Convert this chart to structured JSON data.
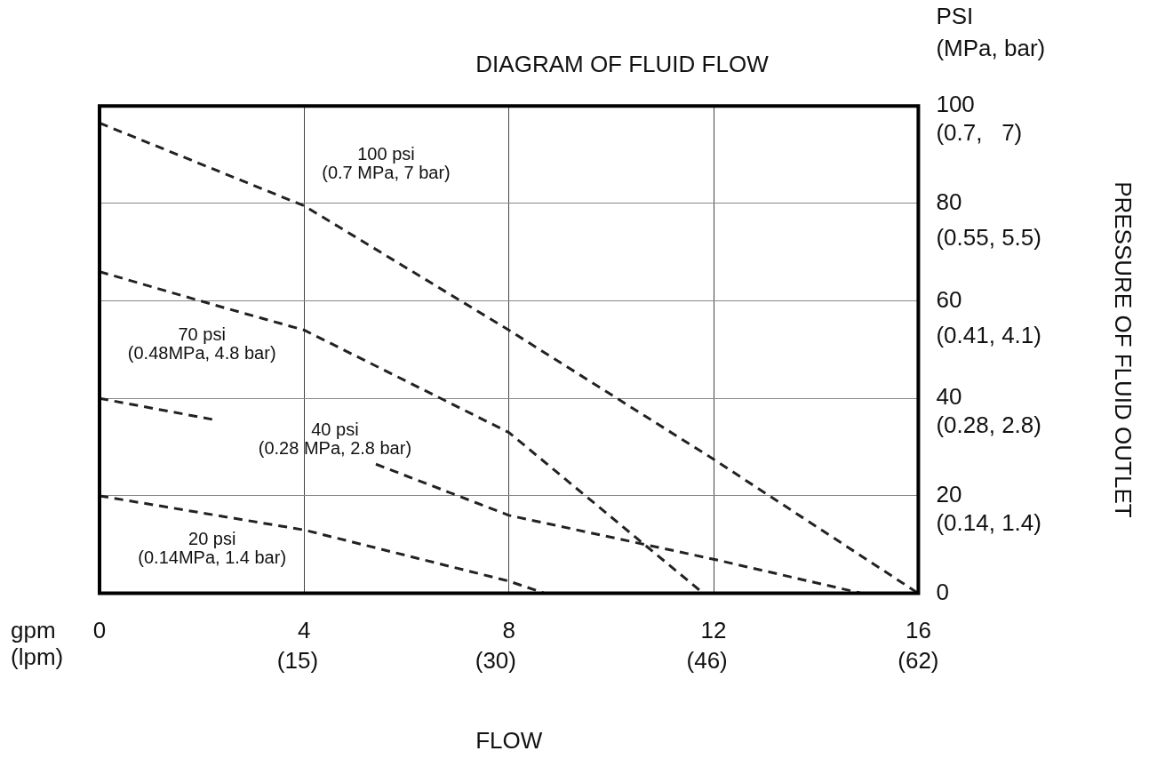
{
  "chart_data": {
    "type": "line",
    "title": "DIAGRAM OF FLUID FLOW",
    "xlabel": "FLOW",
    "y3label": "PRESSURE OF FLUID OUTLET",
    "xlim": [
      0,
      16
    ],
    "xticks": [
      0,
      4,
      8,
      12,
      16
    ],
    "x2lim": [
      0,
      62
    ],
    "x2ticks": [
      {
        "value": 15,
        "label": "(15)"
      },
      {
        "value": 30,
        "label": "(30)"
      },
      {
        "value": 46,
        "label": "(46)"
      },
      {
        "value": 62,
        "label": "(62)"
      }
    ],
    "ylim": [
      0,
      100
    ],
    "yticks": [
      0,
      20,
      40,
      60,
      80,
      100
    ],
    "y2lim": [
      0,
      0.7
    ],
    "y2ticks": [
      {
        "value": 0.14,
        "label": "(0.14,"
      },
      {
        "value": 0.28,
        "label": "(0.28,"
      },
      {
        "value": 0.41,
        "label": "(0.41,"
      },
      {
        "value": 0.55,
        "label": "(0.55,"
      },
      {
        "value": 0.7,
        "label": "(0.7,"
      }
    ],
    "y3lim": [
      0,
      7
    ],
    "y3ticks": [
      {
        "value": 1.4,
        "label": "1.4)"
      },
      {
        "value": 2.8,
        "label": "2.8)"
      },
      {
        "value": 4.1,
        "label": "4.1)"
      },
      {
        "value": 5.5,
        "label": "5.5)"
      },
      {
        "value": 7,
        "label": "7)"
      }
    ],
    "series": [
      {
        "color": "#222222",
        "x": [
          0,
          4,
          8,
          12,
          16
        ],
        "values": [
          96.5,
          79.5,
          54,
          27.5,
          0
        ]
      },
      {
        "color": "#222222",
        "x": [
          0,
          2.3,
          4,
          8,
          11.8
        ],
        "values": [
          66,
          59,
          54,
          33,
          0
        ]
      },
      {
        "color": "#222222",
        "x": [
          0,
          2.3,
          3.5,
          5.4,
          8,
          12,
          14.9
        ],
        "values": [
          40,
          35.5,
          null,
          26.5,
          16,
          7,
          0
        ]
      },
      {
        "color": "#222222",
        "x": [
          0,
          4,
          8,
          8.7
        ],
        "values": [
          20,
          13,
          2.5,
          0
        ]
      }
    ],
    "annotations": [
      "gpm\n(lpm)",
      "PSI\n(MPa, bar)",
      "100 psi\n(0.7 MPa, 7 bar)",
      "70 psi\n(0.48MPa, 4.8 bar)",
      "40 psi\n(0.28 MPa, 2.8 bar)",
      "20 psi\n(0.14MPa, 1.4 bar)"
    ],
    "grid": true,
    "legend": false,
    "marker": "none",
    "line_style": "dashed"
  }
}
